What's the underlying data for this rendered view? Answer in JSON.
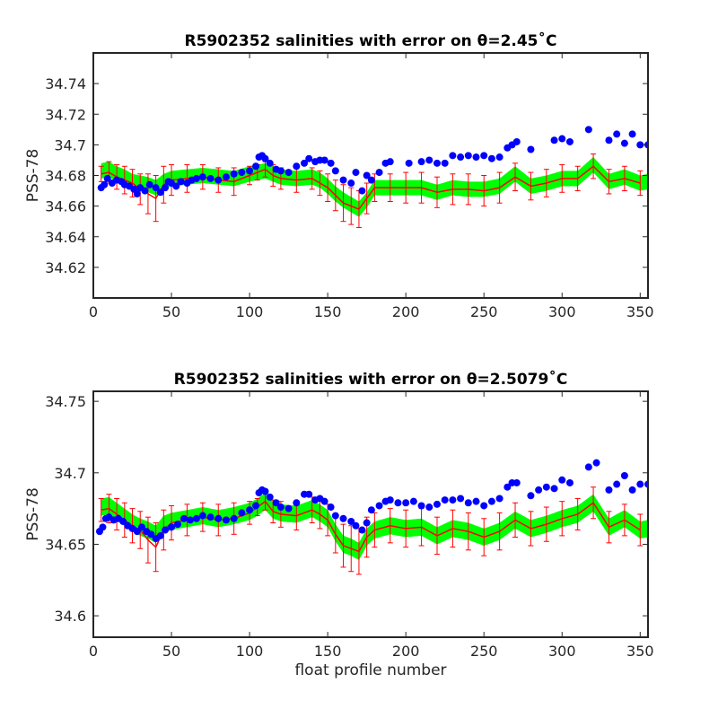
{
  "chart_data": [
    {
      "type": "scatter",
      "title": "R5902352 salinities with error on θ=2.45˚C",
      "ylabel": "PSS-78",
      "xlabel": "",
      "xlim": [
        0,
        355
      ],
      "ylim": [
        34.6,
        34.76
      ],
      "xticks": [
        0,
        50,
        100,
        150,
        200,
        250,
        300,
        350
      ],
      "yticks": [
        34.62,
        34.64,
        34.66,
        34.68,
        34.7,
        34.72,
        34.74
      ],
      "ytick_labels": [
        "34.62",
        "34.64",
        "34.66",
        "34.68",
        "34.7",
        "34.72",
        "34.74"
      ],
      "grid": false,
      "series": [
        {
          "kind": "band",
          "color": "#00ff00",
          "x": [
            5,
            10,
            15,
            20,
            25,
            30,
            35,
            40,
            45,
            50,
            60,
            70,
            80,
            90,
            100,
            105,
            110,
            115,
            120,
            130,
            140,
            145,
            150,
            155,
            160,
            165,
            170,
            175,
            180,
            190,
            200,
            210,
            220,
            230,
            240,
            250,
            260,
            270,
            280,
            290,
            300,
            310,
            320,
            330,
            340,
            350,
            355
          ],
          "values": [
            34.683,
            34.684,
            34.681,
            34.679,
            34.676,
            34.675,
            34.674,
            34.672,
            34.676,
            34.678,
            34.679,
            34.68,
            34.679,
            34.678,
            34.681,
            34.682,
            34.683,
            34.681,
            34.679,
            34.678,
            34.679,
            34.677,
            34.673,
            34.668,
            34.664,
            34.661,
            34.658,
            34.664,
            34.672,
            34.672,
            34.672,
            34.672,
            34.669,
            34.672,
            34.671,
            34.671,
            34.673,
            34.681,
            34.673,
            34.675,
            34.678,
            34.678,
            34.687,
            34.676,
            34.679,
            34.675,
            34.676
          ],
          "spread": 0.005
        },
        {
          "kind": "errorbar",
          "color": "#ff0000",
          "x": [
            5,
            10,
            15,
            20,
            25,
            30,
            35,
            40,
            45,
            50,
            60,
            70,
            80,
            90,
            100,
            105,
            110,
            115,
            120,
            130,
            140,
            145,
            150,
            155,
            160,
            165,
            170,
            175,
            180,
            190,
            200,
            210,
            220,
            230,
            240,
            250,
            260,
            270,
            280,
            290,
            300,
            310,
            320,
            330,
            340,
            350
          ],
          "values": [
            34.681,
            34.682,
            34.679,
            34.677,
            34.675,
            34.671,
            34.668,
            34.665,
            34.674,
            34.677,
            34.678,
            34.679,
            34.677,
            34.676,
            34.68,
            34.682,
            34.684,
            34.68,
            34.678,
            34.677,
            34.678,
            34.675,
            34.672,
            34.667,
            34.662,
            34.66,
            34.658,
            34.665,
            34.672,
            34.672,
            34.672,
            34.672,
            34.669,
            34.671,
            34.671,
            34.67,
            34.672,
            34.679,
            34.673,
            34.675,
            34.678,
            34.678,
            34.686,
            34.676,
            34.678,
            34.675
          ],
          "errors": [
            0.005,
            0.007,
            0.008,
            0.009,
            0.009,
            0.01,
            0.013,
            0.015,
            0.012,
            0.01,
            0.009,
            0.008,
            0.008,
            0.009,
            0.006,
            0.005,
            0.005,
            0.007,
            0.007,
            0.008,
            0.007,
            0.008,
            0.009,
            0.01,
            0.012,
            0.012,
            0.012,
            0.01,
            0.009,
            0.009,
            0.01,
            0.01,
            0.01,
            0.01,
            0.01,
            0.01,
            0.01,
            0.009,
            0.009,
            0.009,
            0.009,
            0.008,
            0.008,
            0.008,
            0.008,
            0.008
          ]
        },
        {
          "kind": "points",
          "color": "#0000ff",
          "x": [
            5,
            7,
            9,
            12,
            15,
            18,
            20,
            23,
            26,
            28,
            30,
            33,
            36,
            40,
            43,
            46,
            48,
            50,
            53,
            56,
            60,
            63,
            66,
            70,
            75,
            80,
            85,
            90,
            95,
            100,
            104,
            106,
            108,
            110,
            113,
            117,
            120,
            125,
            130,
            135,
            138,
            142,
            145,
            148,
            152,
            155,
            160,
            165,
            168,
            172,
            175,
            178,
            183,
            187,
            190,
            202,
            210,
            215,
            220,
            225,
            230,
            235,
            240,
            245,
            250,
            255,
            260,
            265,
            268,
            271,
            280,
            295,
            300,
            305,
            317,
            330,
            335,
            340,
            345,
            350,
            355
          ],
          "values": [
            34.672,
            34.674,
            34.678,
            34.675,
            34.677,
            34.676,
            34.674,
            34.673,
            34.671,
            34.668,
            34.672,
            34.67,
            34.674,
            34.672,
            34.669,
            34.672,
            34.676,
            34.675,
            34.673,
            34.676,
            34.675,
            34.677,
            34.678,
            34.679,
            34.678,
            34.677,
            34.679,
            34.681,
            34.682,
            34.683,
            34.686,
            34.692,
            34.693,
            34.691,
            34.688,
            34.684,
            34.683,
            34.682,
            34.686,
            34.688,
            34.691,
            34.689,
            34.69,
            34.69,
            34.688,
            34.683,
            34.677,
            34.675,
            34.682,
            34.67,
            34.68,
            34.677,
            34.682,
            34.688,
            34.689,
            34.688,
            34.689,
            34.69,
            34.688,
            34.688,
            34.693,
            34.692,
            34.693,
            34.692,
            34.693,
            34.691,
            34.692,
            34.698,
            34.7,
            34.702,
            34.697,
            34.703,
            34.704,
            34.702,
            34.71,
            34.703,
            34.707,
            34.701,
            34.707,
            34.7,
            34.7
          ]
        }
      ]
    },
    {
      "type": "scatter",
      "title": "R5902352 salinities with error on θ=2.5079˚C",
      "ylabel": "PSS-78",
      "xlabel": "float profile number",
      "xlim": [
        0,
        355
      ],
      "ylim": [
        34.585,
        34.757
      ],
      "xticks": [
        0,
        50,
        100,
        150,
        200,
        250,
        300,
        350
      ],
      "yticks": [
        34.6,
        34.65,
        34.7,
        34.75
      ],
      "ytick_labels": [
        "34.6",
        "34.65",
        "34.7",
        "34.75"
      ],
      "grid": false,
      "series": [
        {
          "kind": "band",
          "color": "#00ff00",
          "x": [
            5,
            10,
            15,
            20,
            25,
            30,
            35,
            40,
            45,
            50,
            60,
            70,
            80,
            90,
            100,
            105,
            110,
            115,
            120,
            130,
            140,
            145,
            150,
            155,
            160,
            165,
            170,
            175,
            180,
            190,
            200,
            210,
            220,
            230,
            240,
            250,
            260,
            270,
            280,
            290,
            300,
            310,
            320,
            330,
            340,
            350,
            355
          ],
          "values": [
            34.676,
            34.677,
            34.673,
            34.669,
            34.665,
            34.662,
            34.66,
            34.657,
            34.664,
            34.666,
            34.668,
            34.67,
            34.668,
            34.67,
            34.673,
            34.676,
            34.68,
            34.674,
            34.672,
            34.671,
            34.675,
            34.672,
            34.668,
            34.658,
            34.65,
            34.648,
            34.645,
            34.655,
            34.66,
            34.663,
            34.661,
            34.662,
            34.656,
            34.661,
            34.659,
            34.655,
            34.659,
            34.667,
            34.661,
            34.664,
            34.668,
            34.671,
            34.679,
            34.662,
            34.668,
            34.66,
            34.661
          ],
          "spread": 0.006
        },
        {
          "kind": "errorbar",
          "color": "#ff0000",
          "x": [
            5,
            10,
            15,
            20,
            25,
            30,
            35,
            40,
            45,
            50,
            60,
            70,
            80,
            90,
            100,
            105,
            110,
            115,
            120,
            130,
            140,
            145,
            150,
            155,
            160,
            165,
            170,
            175,
            180,
            190,
            200,
            210,
            220,
            230,
            240,
            250,
            260,
            270,
            280,
            290,
            300,
            310,
            320,
            330,
            340,
            350
          ],
          "values": [
            34.674,
            34.675,
            34.671,
            34.667,
            34.663,
            34.66,
            34.653,
            34.648,
            34.66,
            34.665,
            34.667,
            34.669,
            34.667,
            34.668,
            34.672,
            34.676,
            34.68,
            34.673,
            34.671,
            34.67,
            34.674,
            34.671,
            34.667,
            34.657,
            34.649,
            34.647,
            34.645,
            34.655,
            34.66,
            34.663,
            34.661,
            34.662,
            34.656,
            34.661,
            34.659,
            34.655,
            34.659,
            34.667,
            34.661,
            34.664,
            34.668,
            34.671,
            34.679,
            34.662,
            34.667,
            34.66
          ],
          "errors": [
            0.008,
            0.01,
            0.011,
            0.012,
            0.012,
            0.013,
            0.016,
            0.017,
            0.014,
            0.012,
            0.011,
            0.01,
            0.011,
            0.011,
            0.008,
            0.006,
            0.006,
            0.008,
            0.009,
            0.01,
            0.009,
            0.01,
            0.011,
            0.013,
            0.015,
            0.016,
            0.016,
            0.014,
            0.012,
            0.012,
            0.013,
            0.013,
            0.013,
            0.013,
            0.013,
            0.013,
            0.013,
            0.012,
            0.012,
            0.012,
            0.012,
            0.011,
            0.011,
            0.011,
            0.011,
            0.011
          ]
        },
        {
          "kind": "points",
          "color": "#0000ff",
          "x": [
            4,
            6,
            8,
            10,
            13,
            16,
            19,
            22,
            25,
            28,
            31,
            34,
            37,
            40,
            43,
            46,
            50,
            54,
            58,
            62,
            66,
            70,
            75,
            80,
            85,
            90,
            95,
            100,
            104,
            106,
            108,
            110,
            113,
            117,
            120,
            125,
            130,
            135,
            138,
            142,
            145,
            148,
            152,
            155,
            160,
            165,
            168,
            172,
            175,
            178,
            183,
            187,
            190,
            195,
            200,
            205,
            210,
            215,
            220,
            225,
            230,
            235,
            240,
            245,
            250,
            255,
            260,
            265,
            268,
            271,
            280,
            285,
            290,
            295,
            300,
            305,
            317,
            322,
            330,
            335,
            340,
            345,
            350,
            355
          ],
          "values": [
            34.659,
            34.662,
            34.668,
            34.669,
            34.667,
            34.668,
            34.666,
            34.663,
            34.661,
            34.659,
            34.662,
            34.659,
            34.657,
            34.654,
            34.656,
            34.66,
            34.662,
            34.664,
            34.668,
            34.667,
            34.668,
            34.67,
            34.669,
            34.668,
            34.667,
            34.668,
            34.672,
            34.674,
            34.677,
            34.686,
            34.688,
            34.687,
            34.683,
            34.679,
            34.676,
            34.675,
            34.679,
            34.685,
            34.685,
            34.681,
            34.682,
            34.68,
            34.676,
            34.67,
            34.668,
            34.666,
            34.663,
            34.66,
            34.665,
            34.674,
            34.677,
            34.68,
            34.681,
            34.679,
            34.679,
            34.68,
            34.677,
            34.676,
            34.678,
            34.681,
            34.681,
            34.682,
            34.679,
            34.68,
            34.677,
            34.68,
            34.682,
            34.69,
            34.693,
            34.693,
            34.684,
            34.688,
            34.69,
            34.689,
            34.695,
            34.693,
            34.704,
            34.707,
            34.688,
            34.692,
            34.698,
            34.688,
            34.692,
            34.692
          ]
        }
      ]
    }
  ]
}
